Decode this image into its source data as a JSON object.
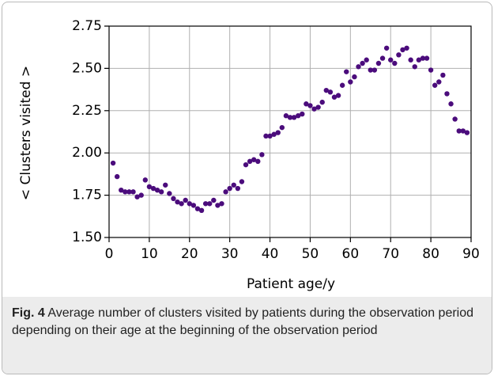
{
  "chart_data": {
    "type": "scatter",
    "xlabel": "Patient age/y",
    "ylabel": "< Clusters visited >",
    "x": [
      1,
      2,
      3,
      4,
      5,
      6,
      7,
      8,
      9,
      10,
      11,
      12,
      13,
      14,
      15,
      16,
      17,
      18,
      19,
      20,
      21,
      22,
      23,
      24,
      25,
      26,
      27,
      28,
      29,
      30,
      31,
      32,
      33,
      34,
      35,
      36,
      37,
      38,
      39,
      40,
      41,
      42,
      43,
      44,
      45,
      46,
      47,
      48,
      49,
      50,
      51,
      52,
      53,
      54,
      55,
      56,
      57,
      58,
      59,
      60,
      61,
      62,
      63,
      64,
      65,
      66,
      67,
      68,
      69,
      70,
      71,
      72,
      73,
      74,
      75,
      76,
      77,
      78,
      79,
      80,
      81,
      82,
      83,
      84,
      85,
      86,
      87,
      88,
      89
    ],
    "values": [
      1.94,
      1.86,
      1.78,
      1.77,
      1.77,
      1.77,
      1.74,
      1.75,
      1.84,
      1.8,
      1.79,
      1.78,
      1.77,
      1.81,
      1.76,
      1.73,
      1.71,
      1.7,
      1.72,
      1.7,
      1.69,
      1.67,
      1.66,
      1.7,
      1.7,
      1.72,
      1.69,
      1.7,
      1.77,
      1.79,
      1.81,
      1.79,
      1.83,
      1.93,
      1.95,
      1.96,
      1.95,
      1.99,
      2.1,
      2.1,
      2.11,
      2.12,
      2.15,
      2.22,
      2.21,
      2.21,
      2.22,
      2.23,
      2.29,
      2.28,
      2.26,
      2.27,
      2.3,
      2.37,
      2.36,
      2.33,
      2.34,
      2.4,
      2.48,
      2.42,
      2.45,
      2.51,
      2.53,
      2.55,
      2.49,
      2.49,
      2.53,
      2.56,
      2.62,
      2.55,
      2.53,
      2.58,
      2.61,
      2.62,
      2.55,
      2.51,
      2.55,
      2.56,
      2.56,
      2.49,
      2.4,
      2.42,
      2.46,
      2.35,
      2.29,
      2.2,
      2.13,
      2.13,
      2.12
    ],
    "color": "#4b0c7c",
    "xlim": [
      0,
      90
    ],
    "xticks": [
      0,
      10,
      20,
      30,
      40,
      50,
      60,
      70,
      80,
      90
    ],
    "ylim": [
      1.5,
      2.75
    ],
    "yticks": [
      {
        "value": 1.5,
        "label": "1.50"
      },
      1.75,
      {
        "value": 2.0,
        "label": "2.00"
      },
      2.25,
      {
        "value": 2.5,
        "label": "2.50"
      },
      2.75
    ],
    "grid": true
  },
  "caption": {
    "label": "Fig. 4",
    "text": "Average number of clusters visited by patients during the observation period depending on their age at the beginning of the observation period"
  }
}
